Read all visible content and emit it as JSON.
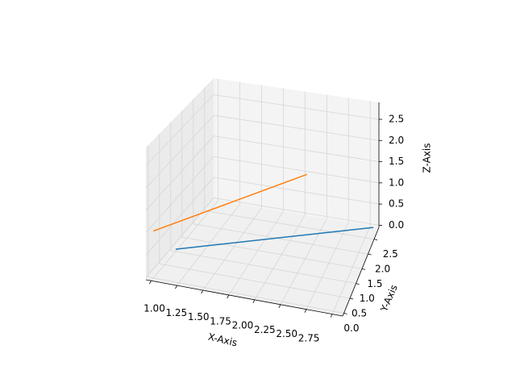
{
  "chart_data": {
    "type": "line3d",
    "xlabel": "X-Axis",
    "ylabel": "Y-Axis",
    "zlabel": "Z-Axis",
    "xlim": [
      0.95,
      2.85
    ],
    "ylim": [
      -0.1,
      2.9
    ],
    "zlim": [
      -0.05,
      2.9
    ],
    "xticks": [
      {
        "value": 1,
        "label": "1.00"
      },
      {
        "value": 1.25,
        "label": "1.25"
      },
      {
        "value": 1.5,
        "label": "1.50"
      },
      {
        "value": 1.75,
        "label": "1.75"
      },
      {
        "value": 2,
        "label": "2.00"
      },
      {
        "value": 2.25,
        "label": "2.25"
      },
      {
        "value": 2.5,
        "label": "2.50"
      },
      {
        "value": 2.75,
        "label": "2.75"
      }
    ],
    "yticks": [
      {
        "value": 0,
        "label": "0.0"
      },
      {
        "value": 0.5,
        "label": "0.5"
      },
      {
        "value": 1,
        "label": "1.0"
      },
      {
        "value": 1.5,
        "label": "1.5"
      },
      {
        "value": 2,
        "label": "2.0"
      },
      {
        "value": 2.5,
        "label": "2.5"
      }
    ],
    "zticks": [
      {
        "value": 0,
        "label": "0.0"
      },
      {
        "value": 0.5,
        "label": "0.5"
      },
      {
        "value": 1,
        "label": "1.0"
      },
      {
        "value": 1.5,
        "label": "1.5"
      },
      {
        "value": 2,
        "label": "2.0"
      },
      {
        "value": 2.5,
        "label": "2.5"
      }
    ],
    "grid": true,
    "series": [
      {
        "color": "#1f77b4",
        "x": [
          1.0,
          2.8
        ],
        "y": [
          1.0,
          2.8
        ],
        "z": [
          0,
          0
        ]
      },
      {
        "color": "#ff7f0e",
        "x": [
          1.0,
          2.3
        ],
        "y": [
          0,
          1.3
        ],
        "z": [
          1,
          2
        ]
      }
    ]
  }
}
